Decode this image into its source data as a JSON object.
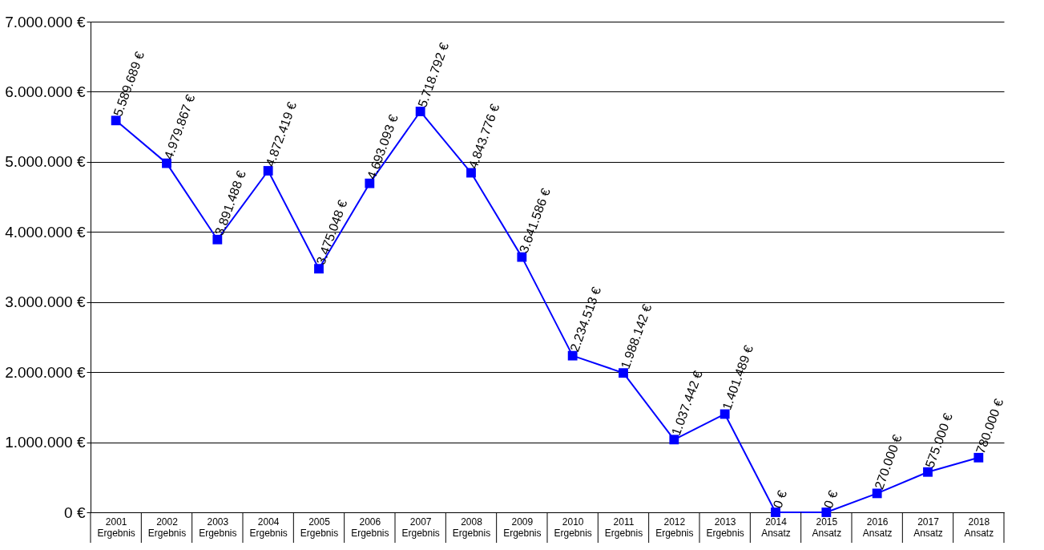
{
  "chart_data": {
    "type": "line",
    "categories": [
      "2001 Ergebnis",
      "2002 Ergebnis",
      "2003 Ergebnis",
      "2004 Ergebnis",
      "2005 Ergebnis",
      "2006 Ergebnis",
      "2007 Ergebnis",
      "2008 Ergebnis",
      "2009 Ergebnis",
      "2010 Ergebnis",
      "2011 Ergebnis",
      "2012 Ergebnis",
      "2013 Ergebnis",
      "2014 Ansatz",
      "2015 Ansatz",
      "2016 Ansatz",
      "2017 Ansatz",
      "2018 Ansatz"
    ],
    "series": [
      {
        "color": "#0000ff",
        "values": [
          5589689,
          4979867,
          3891488,
          4872419,
          3475048,
          4693093,
          5718792,
          4843776,
          3641586,
          2234513,
          1988142,
          1037442,
          1401489,
          0,
          0,
          270000,
          575000,
          780000
        ],
        "value_labels": [
          "5.589.689 €",
          "4.979.867 €",
          "3.891.488 €",
          "4.872.419 €",
          "3.475.048 €",
          "4.693.093 €",
          "5.718.792 €",
          "4.843.776 €",
          "3.641.586 €",
          "2.234.513 €",
          "1.988.142 €",
          "1.037.442 €",
          "1.401.489 €",
          "0 €",
          "0 €",
          "270.000 €",
          "575.000 €",
          "780.000 €"
        ]
      }
    ],
    "ylim": [
      0,
      7000000
    ],
    "yticks": [
      {
        "value": 0,
        "label": "0 €"
      },
      {
        "value": 1000000,
        "label": "1.000.000 €"
      },
      {
        "value": 2000000,
        "label": "2.000.000 €"
      },
      {
        "value": 3000000,
        "label": "3.000.000 €"
      },
      {
        "value": 4000000,
        "label": "4.000.000 €"
      },
      {
        "value": 5000000,
        "label": "5.000.000 €"
      },
      {
        "value": 6000000,
        "label": "6.000.000 €"
      },
      {
        "value": 7000000,
        "label": "7.000.000 €"
      }
    ],
    "grid": "y",
    "marker": "square",
    "line_style": "solid"
  }
}
